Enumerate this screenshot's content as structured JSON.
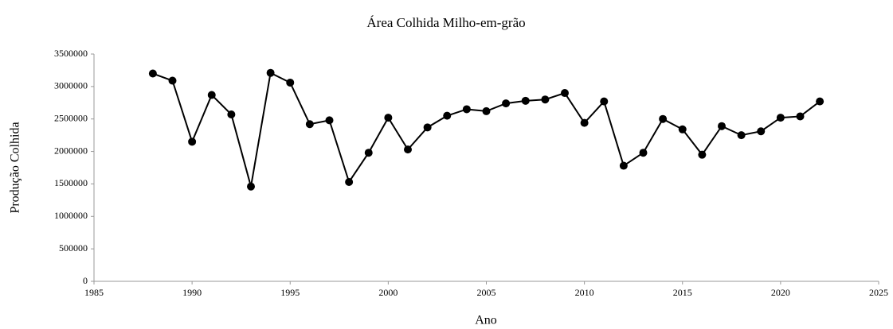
{
  "chart_data": {
    "type": "line",
    "title": "Área Colhida Milho-em-grão",
    "x_label": "Ano",
    "y_label": "Produção Colhida",
    "x": [
      1988,
      1989,
      1990,
      1991,
      1992,
      1993,
      1994,
      1995,
      1996,
      1997,
      1998,
      1999,
      2000,
      2001,
      2002,
      2003,
      2004,
      2005,
      2006,
      2007,
      2008,
      2009,
      2010,
      2011,
      2012,
      2013,
      2014,
      2015,
      2016,
      2017,
      2018,
      2019,
      2020,
      2021,
      2022
    ],
    "series": [
      {
        "name": "Área Colhida",
        "color": "#000000",
        "values": [
          3200000,
          3090000,
          2150000,
          2870000,
          2570000,
          1460000,
          3210000,
          3060000,
          2420000,
          2480000,
          1530000,
          1980000,
          2520000,
          2030000,
          2370000,
          2550000,
          2650000,
          2620000,
          2740000,
          2780000,
          2800000,
          2900000,
          2440000,
          2770000,
          1780000,
          1980000,
          2500000,
          2340000,
          1950000,
          2390000,
          2250000,
          2310000,
          2520000,
          2540000,
          2770000
        ]
      }
    ],
    "xlim": [
      1985,
      2025
    ],
    "xticks": [
      1985,
      1990,
      1995,
      2000,
      2005,
      2010,
      2015,
      2020,
      2025
    ],
    "ylim": [
      0,
      3500000
    ],
    "yticks": [
      0,
      500000,
      1000000,
      1500000,
      2000000,
      2500000,
      3000000,
      3500000
    ],
    "grid": false
  }
}
